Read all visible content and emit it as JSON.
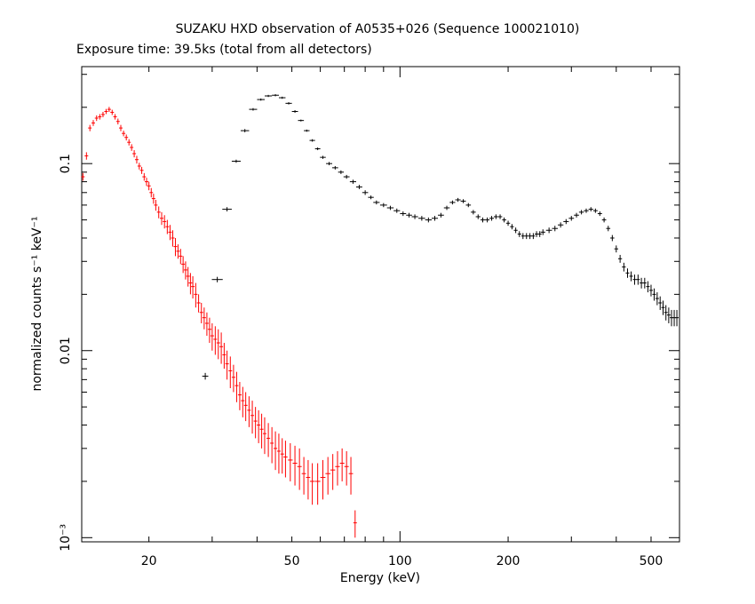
{
  "title": "SUZAKU HXD observation of A0535+026 (Sequence 100021010)",
  "subtitle": "Exposure time: 39.5ks (total from all detectors)",
  "chart_data": {
    "type": "scatter",
    "xlabel": "Energy (keV)",
    "ylabel": "normalized counts s⁻¹ keV⁻¹",
    "x_scale": "log",
    "y_scale": "log",
    "xlim": [
      13,
      600
    ],
    "ylim": [
      0.00095,
      0.33
    ],
    "x_ticks": [
      {
        "value": 20,
        "label": "20"
      },
      {
        "value": 50,
        "label": "50"
      },
      {
        "value": 100,
        "label": "100"
      },
      {
        "value": 200,
        "label": "200"
      },
      {
        "value": 500,
        "label": "500"
      }
    ],
    "y_ticks": [
      {
        "value": 0.1,
        "label": "0.1"
      },
      {
        "value": 0.01,
        "label": "0.01"
      },
      {
        "value": 0.001,
        "label": "10⁻³"
      }
    ],
    "grid": false,
    "legend": "none",
    "series": [
      {
        "color": "#ff0000",
        "x": [
          13.1,
          13.4,
          13.7,
          14.0,
          14.3,
          14.6,
          14.9,
          15.2,
          15.5,
          15.8,
          16.1,
          16.4,
          16.7,
          17.0,
          17.3,
          17.6,
          17.9,
          18.2,
          18.5,
          18.8,
          19.1,
          19.4,
          19.7,
          20.0,
          20.3,
          20.6,
          20.9,
          21.3,
          21.7,
          22.1,
          22.5,
          22.9,
          23.3,
          23.7,
          24.1,
          24.5,
          24.9,
          25.3,
          25.7,
          26.1,
          26.5,
          27.0,
          27.5,
          28.0,
          28.5,
          29.0,
          29.5,
          30.0,
          30.6,
          31.2,
          31.8,
          32.4,
          33.0,
          33.7,
          34.4,
          35.1,
          35.8,
          36.5,
          37.2,
          38.0,
          38.8,
          39.6,
          40.4,
          41.2,
          42.0,
          43.0,
          44.0,
          45.0,
          46.0,
          47.0,
          48.0,
          49.5,
          51.0,
          52.5,
          54.0,
          55.5,
          57.0,
          59.0,
          61.0,
          63.0,
          65.0,
          67.0,
          69.0,
          71.0,
          73.0,
          75.0
        ],
        "y": [
          0.085,
          0.11,
          0.155,
          0.165,
          0.175,
          0.178,
          0.183,
          0.19,
          0.195,
          0.188,
          0.178,
          0.168,
          0.155,
          0.145,
          0.138,
          0.13,
          0.122,
          0.113,
          0.105,
          0.097,
          0.092,
          0.085,
          0.08,
          0.076,
          0.07,
          0.065,
          0.06,
          0.055,
          0.051,
          0.049,
          0.046,
          0.043,
          0.04,
          0.036,
          0.034,
          0.032,
          0.029,
          0.027,
          0.025,
          0.023,
          0.022,
          0.02,
          0.018,
          0.016,
          0.015,
          0.014,
          0.013,
          0.012,
          0.0115,
          0.011,
          0.0105,
          0.0095,
          0.0085,
          0.0078,
          0.0072,
          0.0065,
          0.0058,
          0.0054,
          0.0051,
          0.0048,
          0.0045,
          0.0042,
          0.004,
          0.0038,
          0.0036,
          0.0034,
          0.0032,
          0.003,
          0.0029,
          0.0028,
          0.0027,
          0.0026,
          0.0025,
          0.0024,
          0.0022,
          0.0021,
          0.002,
          0.002,
          0.0021,
          0.0022,
          0.0023,
          0.0024,
          0.0025,
          0.0024,
          0.0022,
          0.0012
        ],
        "y_err": [
          0.004,
          0.005,
          0.006,
          0.006,
          0.006,
          0.006,
          0.006,
          0.006,
          0.006,
          0.006,
          0.006,
          0.006,
          0.006,
          0.005,
          0.005,
          0.005,
          0.005,
          0.005,
          0.005,
          0.004,
          0.004,
          0.004,
          0.004,
          0.004,
          0.004,
          0.004,
          0.004,
          0.004,
          0.004,
          0.004,
          0.004,
          0.004,
          0.004,
          0.004,
          0.003,
          0.003,
          0.003,
          0.003,
          0.003,
          0.003,
          0.003,
          0.003,
          0.002,
          0.002,
          0.002,
          0.002,
          0.002,
          0.002,
          0.002,
          0.002,
          0.002,
          0.0015,
          0.0015,
          0.0015,
          0.0012,
          0.0012,
          0.001,
          0.001,
          0.0009,
          0.0009,
          0.0009,
          0.0008,
          0.0008,
          0.0008,
          0.0008,
          0.0007,
          0.0007,
          0.0007,
          0.0007,
          0.0006,
          0.0006,
          0.0006,
          0.0006,
          0.0006,
          0.0005,
          0.0005,
          0.0005,
          0.0005,
          0.0005,
          0.0005,
          0.0005,
          0.0005,
          0.0005,
          0.0005,
          0.0005,
          0.0002
        ]
      },
      {
        "color": "#000000",
        "x": [
          28.7,
          31.0,
          33.0,
          35.0,
          37.0,
          39.0,
          41.0,
          43.0,
          45.0,
          47.0,
          49.0,
          51.0,
          53.0,
          55.0,
          57.0,
          59.0,
          61.0,
          63.5,
          66.0,
          68.5,
          71.0,
          74.0,
          77.0,
          80.0,
          83.0,
          86.0,
          90.0,
          94.0,
          98.0,
          102.0,
          106.0,
          110.0,
          115.0,
          120.0,
          125.0,
          130.0,
          135.0,
          140.0,
          145.0,
          150.0,
          155.0,
          160.0,
          165.0,
          170.0,
          175.0,
          180.0,
          185.0,
          190.0,
          195.0,
          200.0,
          205.0,
          210.0,
          215.0,
          220.0,
          225.0,
          230.0,
          235.0,
          240.0,
          245.0,
          250.0,
          260.0,
          270.0,
          280.0,
          290.0,
          300.0,
          310.0,
          320.0,
          330.0,
          340.0,
          350.0,
          360.0,
          370.0,
          380.0,
          390.0,
          400.0,
          410.0,
          420.0,
          430.0,
          440.0,
          450.0,
          460.0,
          470.0,
          480.0,
          490.0,
          500.0,
          510.0,
          520.0,
          530.0,
          540.0,
          550.0,
          560.0,
          570.0,
          580.0,
          590.0
        ],
        "y": [
          0.0073,
          0.024,
          0.057,
          0.103,
          0.15,
          0.195,
          0.22,
          0.23,
          0.232,
          0.225,
          0.21,
          0.19,
          0.17,
          0.15,
          0.133,
          0.12,
          0.108,
          0.1,
          0.095,
          0.09,
          0.085,
          0.08,
          0.075,
          0.07,
          0.066,
          0.062,
          0.06,
          0.058,
          0.056,
          0.054,
          0.053,
          0.052,
          0.051,
          0.05,
          0.051,
          0.053,
          0.058,
          0.062,
          0.064,
          0.063,
          0.06,
          0.055,
          0.052,
          0.05,
          0.05,
          0.051,
          0.052,
          0.052,
          0.05,
          0.048,
          0.046,
          0.044,
          0.042,
          0.041,
          0.041,
          0.041,
          0.041,
          0.042,
          0.042,
          0.043,
          0.044,
          0.045,
          0.047,
          0.049,
          0.051,
          0.053,
          0.055,
          0.056,
          0.057,
          0.056,
          0.054,
          0.05,
          0.045,
          0.04,
          0.035,
          0.031,
          0.028,
          0.026,
          0.025,
          0.024,
          0.024,
          0.023,
          0.023,
          0.022,
          0.021,
          0.02,
          0.019,
          0.018,
          0.017,
          0.016,
          0.0155,
          0.015,
          0.015,
          0.015
        ],
        "y_err": [
          0.0003,
          0.0008,
          0.0015,
          0.002,
          0.003,
          0.003,
          0.003,
          0.003,
          0.003,
          0.003,
          0.003,
          0.003,
          0.002,
          0.002,
          0.002,
          0.002,
          0.002,
          0.002,
          0.002,
          0.002,
          0.002,
          0.002,
          0.002,
          0.002,
          0.0015,
          0.0015,
          0.0015,
          0.0015,
          0.0015,
          0.0015,
          0.0015,
          0.0015,
          0.0015,
          0.0015,
          0.0015,
          0.0015,
          0.0015,
          0.0015,
          0.0015,
          0.0015,
          0.0015,
          0.0015,
          0.0015,
          0.0015,
          0.0015,
          0.0015,
          0.0015,
          0.0015,
          0.0015,
          0.0015,
          0.0015,
          0.0015,
          0.0015,
          0.0015,
          0.0015,
          0.0015,
          0.0015,
          0.0015,
          0.0015,
          0.0015,
          0.0015,
          0.0015,
          0.0015,
          0.0015,
          0.0015,
          0.0015,
          0.0015,
          0.0015,
          0.0015,
          0.0015,
          0.0015,
          0.0015,
          0.0015,
          0.0015,
          0.0015,
          0.0015,
          0.0015,
          0.0015,
          0.0015,
          0.0015,
          0.0015,
          0.0015,
          0.0015,
          0.0015,
          0.0015,
          0.0015,
          0.0015,
          0.0015,
          0.0015,
          0.0015,
          0.0015,
          0.0015,
          0.0015,
          0.0015
        ]
      }
    ]
  }
}
